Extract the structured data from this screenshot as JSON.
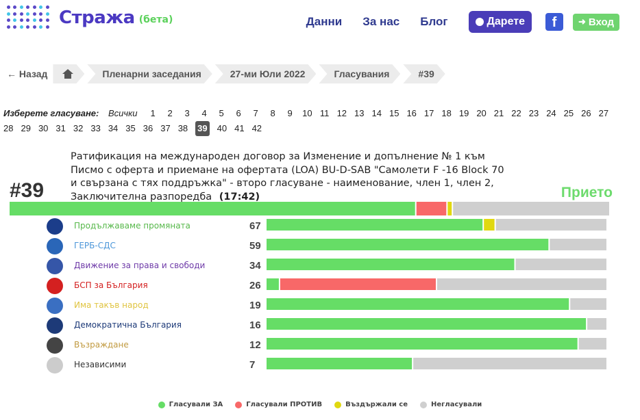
{
  "header": {
    "logo_name": "Стража",
    "logo_beta": "(бета)",
    "nav": [
      "Данни",
      "За нас",
      "Блог"
    ],
    "donate_label": "Дарете",
    "facebook_label": "f",
    "login_label": "Вход"
  },
  "breadcrumb": {
    "back_label": "Назад",
    "items": [
      "Пленарни заседания",
      "27-ми Юли 2022",
      "Гласувания",
      "#39"
    ]
  },
  "selector": {
    "label": "Изберете гласуване:",
    "all_label": "Всички",
    "numbers": [
      "1",
      "2",
      "3",
      "4",
      "5",
      "6",
      "7",
      "8",
      "9",
      "10",
      "11",
      "12",
      "13",
      "14",
      "15",
      "16",
      "17",
      "18",
      "19",
      "20",
      "21",
      "22",
      "23",
      "24",
      "25",
      "26",
      "27",
      "28",
      "29",
      "30",
      "31",
      "32",
      "33",
      "34",
      "35",
      "36",
      "37",
      "38",
      "39",
      "40",
      "41",
      "42"
    ],
    "active": "39"
  },
  "vote": {
    "id": "#39",
    "title": "Ратификация на международен договор за Изменение и допълнение № 1 към Писмо с оферта и приемане на офертата (LOA) BU-D-SAB \"Самолети F -16 Block 70 и свързана с тях поддръжка\" - второ гласуване - наименование, член 1, член 2, Заключителна разпоредба",
    "time": "(17:42)",
    "result": "Прието",
    "totals": {
      "for": 0.677,
      "against": 0.052,
      "abstain": 0.009,
      "absent": 0.262
    }
  },
  "colors": {
    "for": "#66dd66",
    "against": "#f86868",
    "abstain": "#e0d810",
    "absent": "#cfcfcf"
  },
  "parties": [
    {
      "name": "Продължаваме промяната",
      "count": "67",
      "color": "#56b84a",
      "logo_color": "#1b3d8a",
      "logo_icon": "pp-logo-icon",
      "for": 0.637,
      "against": 0,
      "abstain": 0.035,
      "absent": 0.328
    },
    {
      "name": "ГЕРБ-СДС",
      "count": "59",
      "color": "#4d97d9",
      "logo_color": "#2a66b8",
      "logo_icon": "gerb-logo-icon",
      "for": 0.83,
      "against": 0,
      "abstain": 0,
      "absent": 0.17
    },
    {
      "name": "Движение за права и свободи",
      "count": "34",
      "color": "#6e3aa8",
      "logo_color": "#3556a8",
      "logo_icon": "dps-logo-icon",
      "for": 0.73,
      "against": 0,
      "abstain": 0,
      "absent": 0.27
    },
    {
      "name": "БСП за България",
      "count": "26",
      "color": "#d42020",
      "logo_color": "#d42020",
      "logo_icon": "bsp-logo-icon",
      "for": 0.04,
      "against": 0.46,
      "abstain": 0,
      "absent": 0.5
    },
    {
      "name": "Има такъв народ",
      "count": "19",
      "color": "#e0c440",
      "logo_color": "#3a6fc2",
      "logo_icon": "itn-logo-icon",
      "for": 0.89,
      "against": 0,
      "abstain": 0,
      "absent": 0.11
    },
    {
      "name": "Демократична България",
      "count": "16",
      "color": "#1d3a78",
      "logo_color": "#1d3a78",
      "logo_icon": "db-logo-icon",
      "for": 0.94,
      "against": 0,
      "abstain": 0,
      "absent": 0.06
    },
    {
      "name": "Възраждане",
      "count": "12",
      "color": "#c19a40",
      "logo_color": "#444444",
      "logo_icon": "vazrazhdane-logo-icon",
      "for": 0.915,
      "against": 0,
      "abstain": 0,
      "absent": 0.085
    },
    {
      "name": "Независими",
      "count": "7",
      "color": "#333333",
      "logo_color": "#cccccc",
      "logo_icon": "independent-logo-icon",
      "for": 0.43,
      "against": 0,
      "abstain": 0,
      "absent": 0.57
    }
  ],
  "legend": [
    {
      "label": "Гласували ЗА",
      "key": "for"
    },
    {
      "label": "Гласували ПРОТИВ",
      "key": "against"
    },
    {
      "label": "Въздържали се",
      "key": "abstain"
    },
    {
      "label": "Негласували",
      "key": "absent"
    }
  ]
}
